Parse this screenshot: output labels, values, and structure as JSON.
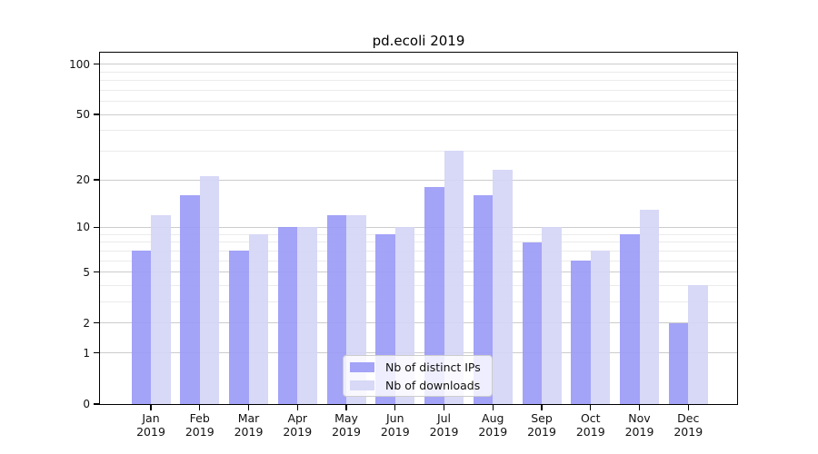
{
  "chart_data": {
    "type": "bar",
    "title": "pd.ecoli 2019",
    "categories": [
      "Jan 2019",
      "Feb 2019",
      "Mar 2019",
      "Apr 2019",
      "May 2019",
      "Jun 2019",
      "Jul 2019",
      "Aug 2019",
      "Sep 2019",
      "Oct 2019",
      "Nov 2019",
      "Dec 2019"
    ],
    "series": [
      {
        "name": "Nb of distinct IPs",
        "color": "#9b9bf7",
        "alpha": 0.92,
        "values": [
          7,
          16,
          7,
          10,
          12,
          9,
          18,
          16,
          8,
          6,
          9,
          2
        ]
      },
      {
        "name": "Nb of downloads",
        "color": "#d5d5f6",
        "alpha": 0.92,
        "values": [
          12,
          21,
          9,
          10,
          12,
          10,
          30,
          23,
          10,
          7,
          13,
          4
        ]
      }
    ],
    "xlabel": "",
    "ylabel": "",
    "y_axis": {
      "scale": "log1p",
      "min": 0,
      "max": 117,
      "major_ticks": [
        0,
        1,
        2,
        5,
        10,
        20,
        50,
        100
      ],
      "minor_gridlines": [
        3,
        4,
        6,
        7,
        8,
        9,
        30,
        40,
        60,
        70,
        80,
        90
      ]
    },
    "grid": {
      "enabled": true,
      "major_color": "#cccccc",
      "minor_color": "#ebebeb"
    },
    "legend": {
      "position": "lower center"
    },
    "colors": {
      "background": "#ffffff",
      "spine": "#000000",
      "text": "#111111"
    }
  }
}
